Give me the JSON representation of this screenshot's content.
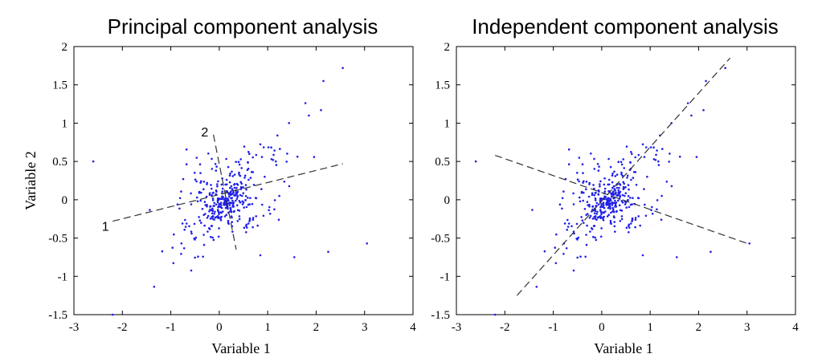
{
  "chart_data": [
    {
      "type": "scatter",
      "title": "Principal component analysis",
      "xlabel": "Variable 1",
      "ylabel": "Variable 2",
      "xlim": [
        -3,
        4
      ],
      "ylim": [
        -1.5,
        2
      ],
      "xticks": [
        "-3",
        "-2",
        "-1",
        "0",
        "1",
        "2",
        "3",
        "4"
      ],
      "yticks": [
        "-1.5",
        "-1",
        "-0.5",
        "0",
        "0.5",
        "1",
        "1.5",
        "2"
      ],
      "grid": false,
      "point_color": "#2020e8",
      "points_seed": 7,
      "points_extra": [
        [
          -2.6,
          0.5
        ],
        [
          -2.2,
          -1.5
        ],
        [
          2.55,
          1.72
        ],
        [
          3.05,
          -0.57
        ],
        [
          2.15,
          1.55
        ],
        [
          2.25,
          -0.68
        ],
        [
          2.1,
          1.17
        ],
        [
          1.85,
          1.1
        ],
        [
          1.55,
          -0.75
        ]
      ],
      "lines": [
        {
          "label": "1",
          "x": [
            -2.2,
            2.55
          ],
          "y": [
            -0.28,
            0.47
          ],
          "label_pos": [
            -2.35,
            -0.35
          ]
        },
        {
          "label": "2",
          "x": [
            -0.12,
            0.35
          ],
          "y": [
            0.85,
            -0.65
          ],
          "label_pos": [
            -0.3,
            0.88
          ]
        }
      ]
    },
    {
      "type": "scatter",
      "title": "Independent component analysis",
      "xlabel": "Variable 1",
      "ylabel": "",
      "xlim": [
        -3,
        4
      ],
      "ylim": [
        -1.5,
        2
      ],
      "xticks": [
        "-3",
        "-2",
        "-1",
        "0",
        "1",
        "2",
        "3",
        "4"
      ],
      "yticks": [
        "-1.5",
        "-1",
        "-0.5",
        "0",
        "0.5",
        "1",
        "1.5",
        "2"
      ],
      "grid": false,
      "point_color": "#2020e8",
      "points_seed": 7,
      "points_extra": [
        [
          -2.6,
          0.5
        ],
        [
          -2.2,
          -1.5
        ],
        [
          2.55,
          1.72
        ],
        [
          3.05,
          -0.57
        ],
        [
          2.15,
          1.55
        ],
        [
          2.25,
          -0.68
        ],
        [
          2.1,
          1.17
        ],
        [
          1.85,
          1.1
        ],
        [
          1.55,
          -0.75
        ]
      ],
      "lines": [
        {
          "label": "",
          "x": [
            -1.75,
            2.65
          ],
          "y": [
            -1.25,
            1.85
          ]
        },
        {
          "label": "",
          "x": [
            -2.2,
            3.05
          ],
          "y": [
            0.58,
            -0.58
          ]
        }
      ]
    }
  ]
}
